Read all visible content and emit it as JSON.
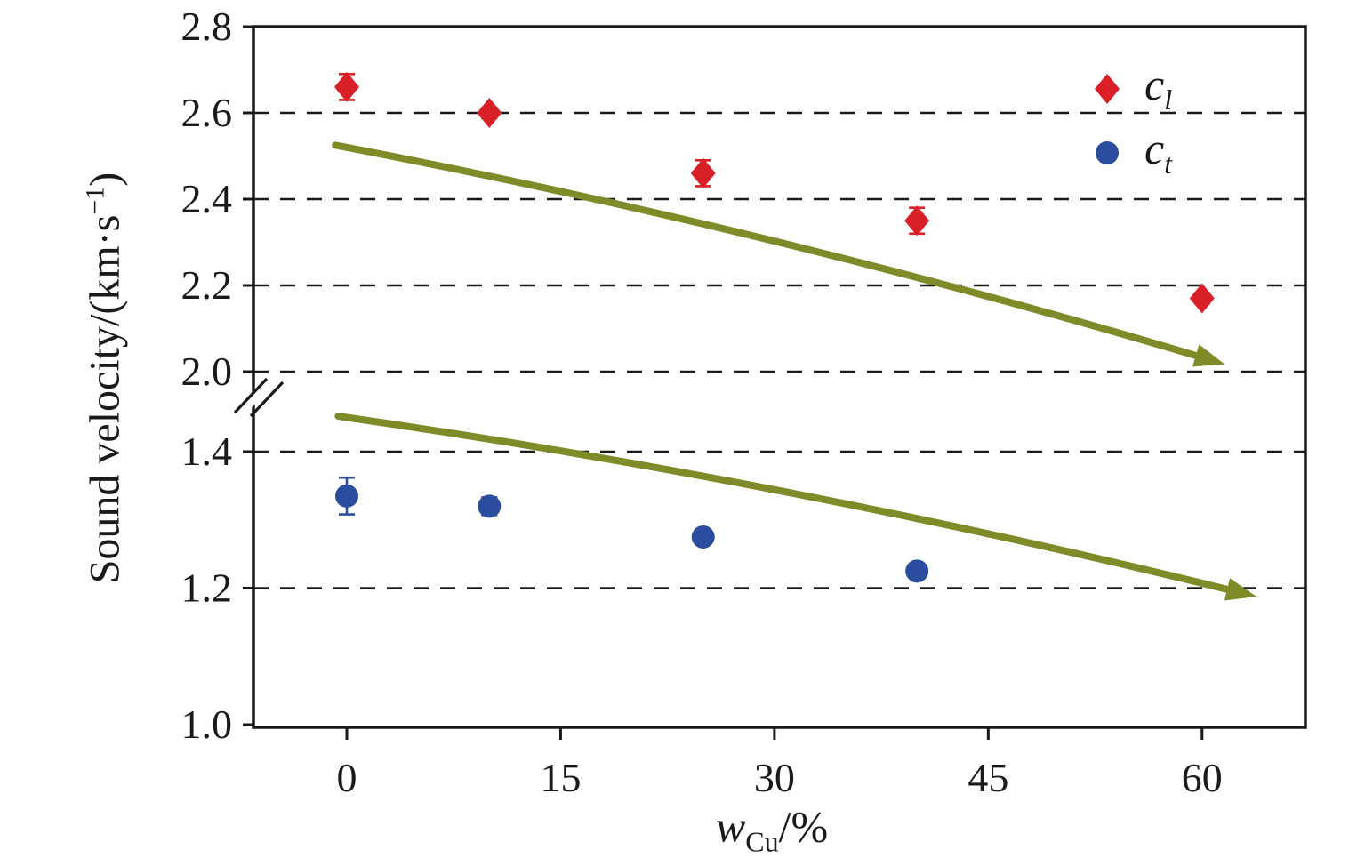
{
  "chart_data": {
    "type": "scatter",
    "title": "",
    "xlabel": {
      "variable": "w",
      "subscript": "Cu",
      "suffix": "/%"
    },
    "ylabel": {
      "prefix": "Sound velocity/(km·s",
      "superscript": "−1",
      "suffix": ")"
    },
    "x_ticks": [
      "0",
      "15",
      "30",
      "45",
      "60"
    ],
    "x_tick_values": [
      0,
      15,
      30,
      45,
      60
    ],
    "xlim": [
      -6.55,
      67.25
    ],
    "y_axis": {
      "break": true,
      "upper": {
        "range": [
          2.0,
          2.8
        ],
        "ticks": [
          2.0,
          2.2,
          2.4,
          2.6,
          2.8
        ]
      },
      "lower": {
        "range": [
          1.0,
          1.49
        ],
        "ticks": [
          1.0,
          1.2,
          1.4
        ]
      }
    },
    "gridlines_y": [
      2.6,
      2.4,
      2.2,
      2.0,
      1.4,
      1.2
    ],
    "grid_style": "dashed",
    "series": [
      {
        "name": "c_l",
        "label_main": "c",
        "label_sub": "l",
        "marker": "diamond",
        "color": "#d92027",
        "points": [
          {
            "x": 0,
            "y": 2.66,
            "yerr": 0.03
          },
          {
            "x": 10,
            "y": 2.6,
            "yerr": 0.012
          },
          {
            "x": 25,
            "y": 2.46,
            "yerr": 0.03
          },
          {
            "x": 40,
            "y": 2.35,
            "yerr": 0.03
          },
          {
            "x": 60,
            "y": 2.17,
            "yerr": 0.012
          }
        ]
      },
      {
        "name": "c_t",
        "label_main": "c",
        "label_sub": "t",
        "marker": "circle",
        "color": "#2a4d9e",
        "points": [
          {
            "x": 0,
            "y": 1.335,
            "yerr": 0.027
          },
          {
            "x": 10,
            "y": 1.32,
            "yerr": 0.013
          },
          {
            "x": 25,
            "y": 1.275,
            "yerr": 0.006
          },
          {
            "x": 40,
            "y": 1.225,
            "yerr": 0.009
          }
        ]
      }
    ],
    "trend_arrows": [
      {
        "color": "#7e8b28",
        "x1": -0.8,
        "y1": 2.525,
        "x2": 59.8,
        "y2": 2.035
      },
      {
        "color": "#7e8b28",
        "x1": -0.6,
        "y1": 1.452,
        "x2": 62.0,
        "y2": 1.197
      }
    ],
    "legend": {
      "position": "top-right",
      "items": [
        {
          "label_main": "c",
          "label_sub": "l",
          "marker": "diamond",
          "color": "#d92027"
        },
        {
          "label_main": "c",
          "label_sub": "t",
          "marker": "circle",
          "color": "#2a4d9e"
        }
      ]
    },
    "axis_color": "#1a1a1a",
    "background": "#ffffff"
  }
}
